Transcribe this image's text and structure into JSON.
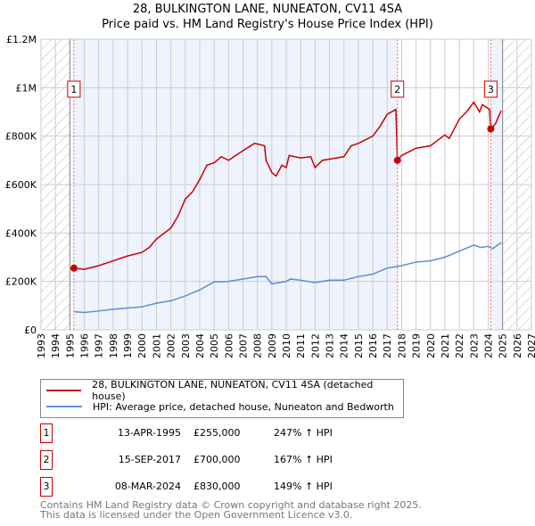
{
  "chart_data": {
    "type": "line",
    "title": "28, BULKINGTON LANE, NUNEATON, CV11 4SA",
    "subtitle": "Price paid vs. HM Land Registry's House Price Index (HPI)",
    "xlim": [
      1993,
      2027
    ],
    "ylim": [
      0,
      1200000
    ],
    "x_ticks": [
      "1993",
      "1994",
      "1995",
      "1996",
      "1997",
      "1998",
      "1999",
      "2000",
      "2001",
      "2002",
      "2003",
      "2004",
      "2005",
      "2006",
      "2007",
      "2008",
      "2009",
      "2010",
      "2011",
      "2012",
      "2013",
      "2014",
      "2015",
      "2016",
      "2017",
      "2018",
      "2019",
      "2020",
      "2021",
      "2022",
      "2023",
      "2024",
      "2025",
      "2026",
      "2027"
    ],
    "y_ticks": [
      {
        "v": 0,
        "label": "£0"
      },
      {
        "v": 200000,
        "label": "£200K"
      },
      {
        "v": 400000,
        "label": "£400K"
      },
      {
        "v": 600000,
        "label": "£600K"
      },
      {
        "v": 800000,
        "label": "£800K"
      },
      {
        "v": 1000000,
        "label": "£1M"
      },
      {
        "v": 1200000,
        "label": "£1.2M"
      }
    ],
    "grid": true,
    "hatched_ranges": [
      [
        1993,
        1995
      ],
      [
        2025,
        2027
      ]
    ],
    "shaded_ranges": [
      [
        1995.28,
        2017.71
      ],
      [
        2024.18,
        2025
      ]
    ],
    "series": [
      {
        "name": "28, BULKINGTON LANE, NUNEATON, CV11 4SA (detached house)",
        "color": "#cc0000",
        "x": [
          1995.28,
          1996,
          1997,
          1998,
          1999,
          2000,
          2000.5,
          2001,
          2002,
          2002.5,
          2003,
          2003.5,
          2004,
          2004.5,
          2005,
          2005.5,
          2006,
          2007,
          2007.8,
          2008.5,
          2008.6,
          2009,
          2009.3,
          2009.7,
          2010,
          2010.2,
          2011,
          2011.7,
          2012,
          2012.5,
          2013,
          2014,
          2014.5,
          2015,
          2016,
          2016.5,
          2017,
          2017.6,
          2017.71,
          2018,
          2019,
          2020,
          2021,
          2021.3,
          2022,
          2022.5,
          2023,
          2023.4,
          2023.6,
          2024.1,
          2024.18,
          2024.5,
          2024.9
        ],
        "values": [
          255000,
          250000,
          265000,
          285000,
          305000,
          320000,
          340000,
          375000,
          420000,
          470000,
          540000,
          570000,
          620000,
          680000,
          690000,
          715000,
          700000,
          740000,
          770000,
          760000,
          700000,
          650000,
          635000,
          680000,
          670000,
          720000,
          710000,
          715000,
          670000,
          700000,
          705000,
          715000,
          760000,
          770000,
          800000,
          840000,
          890000,
          910000,
          700000,
          720000,
          750000,
          760000,
          805000,
          790000,
          870000,
          900000,
          940000,
          900000,
          930000,
          910000,
          830000,
          850000,
          905000
        ]
      },
      {
        "name": "HPI: Average price, detached house, Nuneaton and Bedworth",
        "color": "#5b8fd4",
        "x": [
          1995.28,
          1996,
          1997,
          1998,
          1999,
          2000,
          2001,
          2002,
          2003,
          2004,
          2005,
          2006,
          2007,
          2008,
          2008.6,
          2009,
          2009.5,
          2010,
          2010.3,
          2011,
          2012,
          2013,
          2014,
          2015,
          2016,
          2017,
          2018,
          2019,
          2020,
          2021,
          2022,
          2023,
          2023.5,
          2024,
          2024.3,
          2024.9
        ],
        "values": [
          75000,
          72000,
          78000,
          85000,
          90000,
          95000,
          110000,
          120000,
          140000,
          165000,
          198000,
          200000,
          210000,
          220000,
          220000,
          190000,
          195000,
          200000,
          210000,
          205000,
          195000,
          205000,
          205000,
          220000,
          230000,
          255000,
          265000,
          280000,
          285000,
          300000,
          325000,
          350000,
          340000,
          345000,
          335000,
          360000
        ]
      }
    ],
    "sales": [
      {
        "n": "1",
        "x": 1995.28,
        "value": 255000,
        "date": "13-APR-1995",
        "price": "£255,000",
        "hpi": "247% ↑ HPI"
      },
      {
        "n": "2",
        "x": 2017.71,
        "value": 700000,
        "date": "15-SEP-2017",
        "price": "£700,000",
        "hpi": "167% ↑ HPI"
      },
      {
        "n": "3",
        "x": 2024.18,
        "value": 830000,
        "date": "08-MAR-2024",
        "price": "£830,000",
        "hpi": "149% ↑ HPI"
      }
    ]
  },
  "footer": {
    "line1": "Contains HM Land Registry data © Crown copyright and database right 2025.",
    "line2": "This data is licensed under the Open Government Licence v3.0."
  }
}
